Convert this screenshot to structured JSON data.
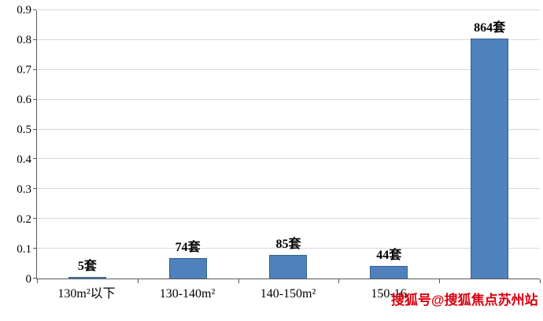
{
  "chart_data": {
    "type": "bar",
    "categories": [
      "130m²以下",
      "130-140m²",
      "140-150m²",
      "150-16",
      ""
    ],
    "values": [
      0.005,
      0.069,
      0.079,
      0.041,
      0.806
    ],
    "counts": [
      5,
      74,
      85,
      44,
      864
    ],
    "bar_labels": [
      "5套",
      "74套",
      "85套",
      "44套",
      "864套"
    ],
    "title": "",
    "xlabel": "",
    "ylabel": "",
    "ylim": [
      0,
      0.9
    ],
    "ytick_step": 0.1,
    "yticks": [
      "0",
      "0.1",
      "0.2",
      "0.3",
      "0.4",
      "0.5",
      "0.6",
      "0.7",
      "0.8",
      "0.9"
    ],
    "grid": true,
    "legend_position": "none",
    "bar_color": "#4f81bd",
    "bar_border_color": "#38618f",
    "grid_color": "#d9d9d9",
    "axis_color": "#595959"
  },
  "watermark": {
    "text": "搜狐号@搜狐焦点苏州站",
    "color": "#d7000f"
  }
}
